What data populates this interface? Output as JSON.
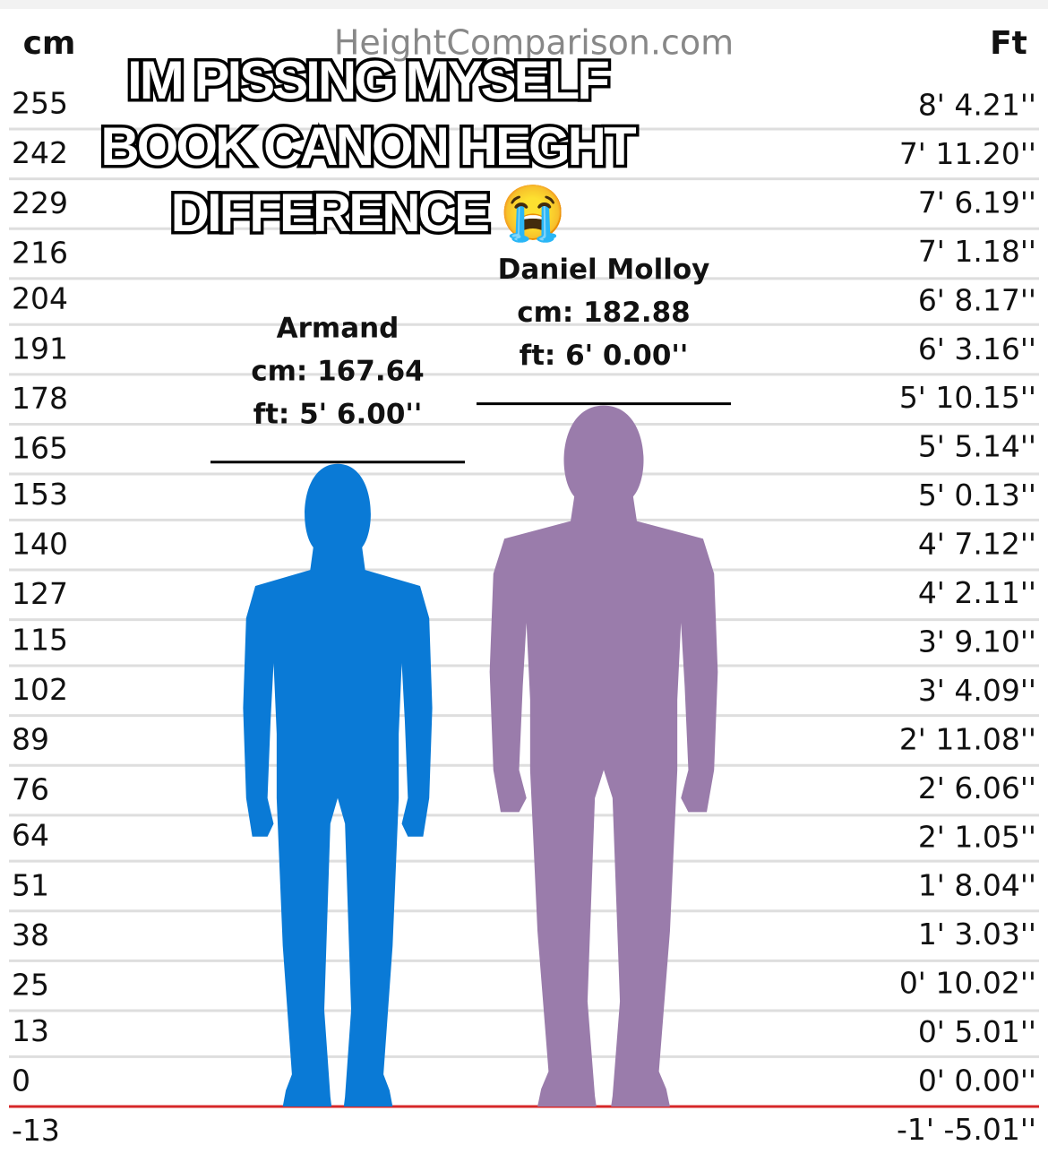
{
  "chart_data": {
    "type": "height-comparison",
    "site": "HeightComparison.com",
    "caption": [
      "IM PISSING MYSELF",
      "BOOK CANON HEGHT",
      "DIFFERENCE 😭"
    ],
    "y_label": "cm",
    "y2_label": "Ft",
    "categories": [
      "Armand",
      "Daniel Molloy"
    ],
    "values": [
      167.64,
      182.88
    ],
    "value_labels": [
      "cm: 167.64",
      "cm: 182.88"
    ],
    "ft_labels": [
      "ft: 5' 6.00''",
      "ft: 6' 0.00''"
    ],
    "colors": [
      "#0a7ad6",
      "#9a7cab"
    ],
    "baseline_color": "#d62728",
    "grid": true,
    "ylim": [
      -12,
      286
    ],
    "yticks": [
      255,
      242,
      229,
      216,
      204,
      191,
      178,
      165,
      153,
      140,
      127,
      115,
      102,
      89,
      76,
      64,
      51,
      38,
      25,
      13,
      0,
      -13
    ],
    "y2lim": [
      -4.72,
      112.6
    ],
    "y2ticks": [
      {
        "value": 100.21,
        "label": "8' 4.21''"
      },
      {
        "value": 95.2,
        "label": "7' 11.20''"
      },
      {
        "value": 90.19,
        "label": "7' 6.19''"
      },
      {
        "value": 85.18,
        "label": "7' 1.18''"
      },
      {
        "value": 80.17,
        "label": "6' 8.17''"
      },
      {
        "value": 75.16,
        "label": "6' 3.16''"
      },
      {
        "value": 70.15,
        "label": "5' 10.15''"
      },
      {
        "value": 65.14,
        "label": "5' 5.14''"
      },
      {
        "value": 60.13,
        "label": "5' 0.13''"
      },
      {
        "value": 55.12,
        "label": "4' 7.12''"
      },
      {
        "value": 50.11,
        "label": "4' 2.11''"
      },
      {
        "value": 45.1,
        "label": "3' 9.10''"
      },
      {
        "value": 40.09,
        "label": "3' 4.09''"
      },
      {
        "value": 35.08,
        "label": "2' 11.08''"
      },
      {
        "value": 30.06,
        "label": "2' 6.06''"
      },
      {
        "value": 25.05,
        "label": "2' 1.05''"
      },
      {
        "value": 20.04,
        "label": "1' 8.04''"
      },
      {
        "value": 15.03,
        "label": "1' 3.03''"
      },
      {
        "value": 10.02,
        "label": "0' 10.02''"
      },
      {
        "value": 5.01,
        "label": "0' 5.01''"
      },
      {
        "value": 0,
        "label": "0' 0.00''"
      },
      {
        "value": -5.01,
        "label": "-1' -5.01''"
      }
    ]
  }
}
